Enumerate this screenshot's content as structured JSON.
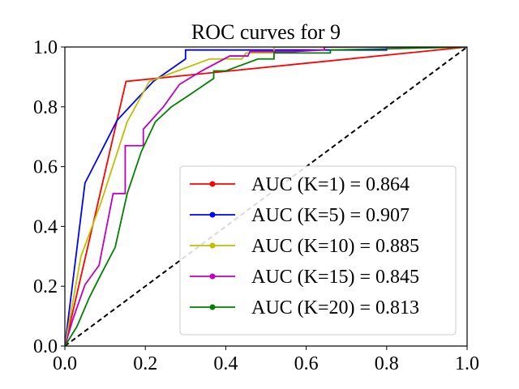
{
  "chart_data": {
    "type": "line",
    "title": "ROC curves for 9",
    "xlabel": "",
    "ylabel": "",
    "xlim": [
      0.0,
      1.0
    ],
    "ylim": [
      0.0,
      1.0
    ],
    "x_ticks": [
      "0.0",
      "0.2",
      "0.4",
      "0.6",
      "0.8",
      "1.0"
    ],
    "y_ticks": [
      "0.0",
      "0.2",
      "0.4",
      "0.6",
      "0.8",
      "1.0"
    ],
    "grid": false,
    "legend_position": "lower-right",
    "diagonal": {
      "style": "dashed",
      "color": "#000000",
      "x": [
        0,
        1
      ],
      "y": [
        0,
        1
      ]
    },
    "series": [
      {
        "name": "AUC (K=1) = 0.864",
        "color": "#ff0000",
        "x": [
          0,
          0.152,
          1.0
        ],
        "y": [
          0,
          0.885,
          1.0
        ]
      },
      {
        "name": "AUC (K=5) = 0.907",
        "color": "#0000ff",
        "x": [
          0,
          0.05,
          0.13,
          0.22,
          0.3,
          0.3,
          0.8,
          0.8,
          1.0
        ],
        "y": [
          0,
          0.545,
          0.755,
          0.885,
          0.96,
          0.99,
          0.99,
          1.0,
          1.0
        ]
      },
      {
        "name": "AUC (K=10) = 0.885",
        "color": "#bfbf00",
        "x": [
          0,
          0.04,
          0.09,
          0.155,
          0.21,
          0.28,
          0.36,
          0.44,
          0.45,
          0.52,
          0.52,
          1.0
        ],
        "y": [
          0,
          0.3,
          0.48,
          0.75,
          0.885,
          0.92,
          0.96,
          0.96,
          0.98,
          0.98,
          1.0,
          1.0
        ]
      },
      {
        "name": "AUC (K=15) = 0.845",
        "color": "#bf00bf",
        "x": [
          0,
          0.02,
          0.05,
          0.085,
          0.12,
          0.15,
          0.15,
          0.195,
          0.195,
          0.245,
          0.285,
          0.34,
          0.41,
          0.455,
          0.46,
          0.57,
          0.645,
          0.645,
          1.0
        ],
        "y": [
          0,
          0.09,
          0.205,
          0.27,
          0.51,
          0.51,
          0.67,
          0.67,
          0.725,
          0.8,
          0.875,
          0.92,
          0.97,
          0.97,
          0.985,
          0.985,
          0.99,
          1.0,
          1.0
        ]
      },
      {
        "name": "AUC (K=20) = 0.813",
        "color": "#008000",
        "x": [
          0,
          0.03,
          0.06,
          0.09,
          0.125,
          0.155,
          0.19,
          0.225,
          0.265,
          0.31,
          0.37,
          0.37,
          0.4,
          0.45,
          0.48,
          0.52,
          0.52,
          0.66,
          0.66,
          1.0
        ],
        "y": [
          0,
          0.065,
          0.16,
          0.24,
          0.33,
          0.51,
          0.65,
          0.75,
          0.8,
          0.84,
          0.895,
          0.92,
          0.92,
          0.945,
          0.96,
          0.96,
          0.98,
          0.98,
          0.99,
          1.0
        ]
      }
    ]
  }
}
